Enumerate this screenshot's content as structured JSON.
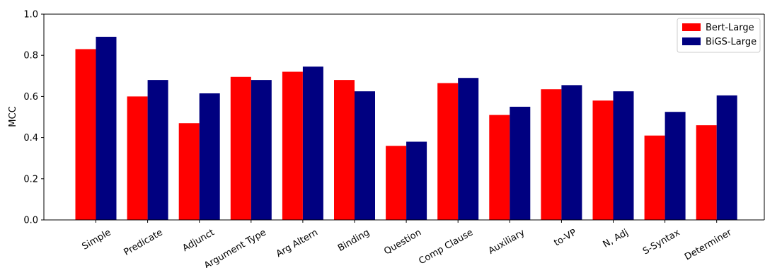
{
  "chart_data": {
    "type": "bar",
    "title": "",
    "xlabel": "",
    "ylabel": "MCC",
    "ylim": [
      0.0,
      1.0
    ],
    "yticks": [
      "0.0",
      "0.2",
      "0.4",
      "0.6",
      "0.8",
      "1.0"
    ],
    "grid": false,
    "legend_position": "top-right",
    "categories": [
      "Simple",
      "Predicate",
      "Adjunct",
      "Argument Type",
      "Arg Altern",
      "Binding",
      "Question",
      "Comp Clause",
      "Auxiliary",
      "to-VP",
      "N, Adj",
      "S-Syntax",
      "Determiner"
    ],
    "series": [
      {
        "name": "Bert-Large",
        "color": "#ff0000",
        "values": [
          0.83,
          0.6,
          0.47,
          0.695,
          0.72,
          0.68,
          0.36,
          0.665,
          0.51,
          0.635,
          0.58,
          0.41,
          0.46
        ]
      },
      {
        "name": "BiGS-Large",
        "color": "#000080",
        "values": [
          0.89,
          0.68,
          0.615,
          0.68,
          0.745,
          0.625,
          0.38,
          0.69,
          0.55,
          0.655,
          0.625,
          0.525,
          0.605
        ]
      }
    ]
  }
}
